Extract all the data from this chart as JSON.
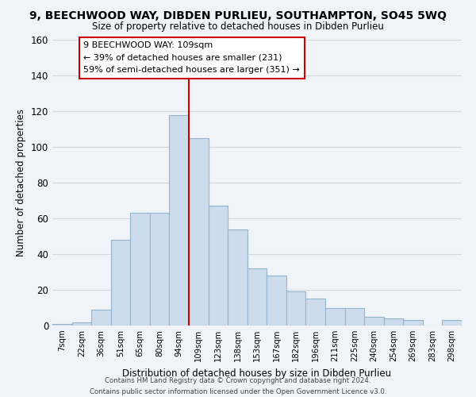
{
  "title": "9, BEECHWOOD WAY, DIBDEN PURLIEU, SOUTHAMPTON, SO45 5WQ",
  "subtitle": "Size of property relative to detached houses in Dibden Purlieu",
  "xlabel": "Distribution of detached houses by size in Dibden Purlieu",
  "ylabel": "Number of detached properties",
  "bar_labels": [
    "7sqm",
    "22sqm",
    "36sqm",
    "51sqm",
    "65sqm",
    "80sqm",
    "94sqm",
    "109sqm",
    "123sqm",
    "138sqm",
    "153sqm",
    "167sqm",
    "182sqm",
    "196sqm",
    "211sqm",
    "225sqm",
    "240sqm",
    "254sqm",
    "269sqm",
    "283sqm",
    "298sqm"
  ],
  "bar_heights": [
    1,
    2,
    9,
    48,
    63,
    63,
    118,
    105,
    67,
    54,
    32,
    28,
    19,
    15,
    10,
    10,
    5,
    4,
    3,
    0,
    3
  ],
  "bar_color": "#ccdcec",
  "bar_edge_color": "#92b4cc",
  "vline_x": 6.5,
  "vline_color": "#cc0000",
  "annotation_text": "9 BEECHWOOD WAY: 109sqm\n← 39% of detached houses are smaller (231)\n59% of semi-detached houses are larger (351) →",
  "annotation_box_edge": "#cc0000",
  "ylim": [
    0,
    160
  ],
  "yticks": [
    0,
    20,
    40,
    60,
    80,
    100,
    120,
    140,
    160
  ],
  "grid_color": "#d0d8e4",
  "background_color": "#f0f4f8",
  "footer_line1": "Contains HM Land Registry data © Crown copyright and database right 2024.",
  "footer_line2": "Contains public sector information licensed under the Open Government Licence v3.0."
}
